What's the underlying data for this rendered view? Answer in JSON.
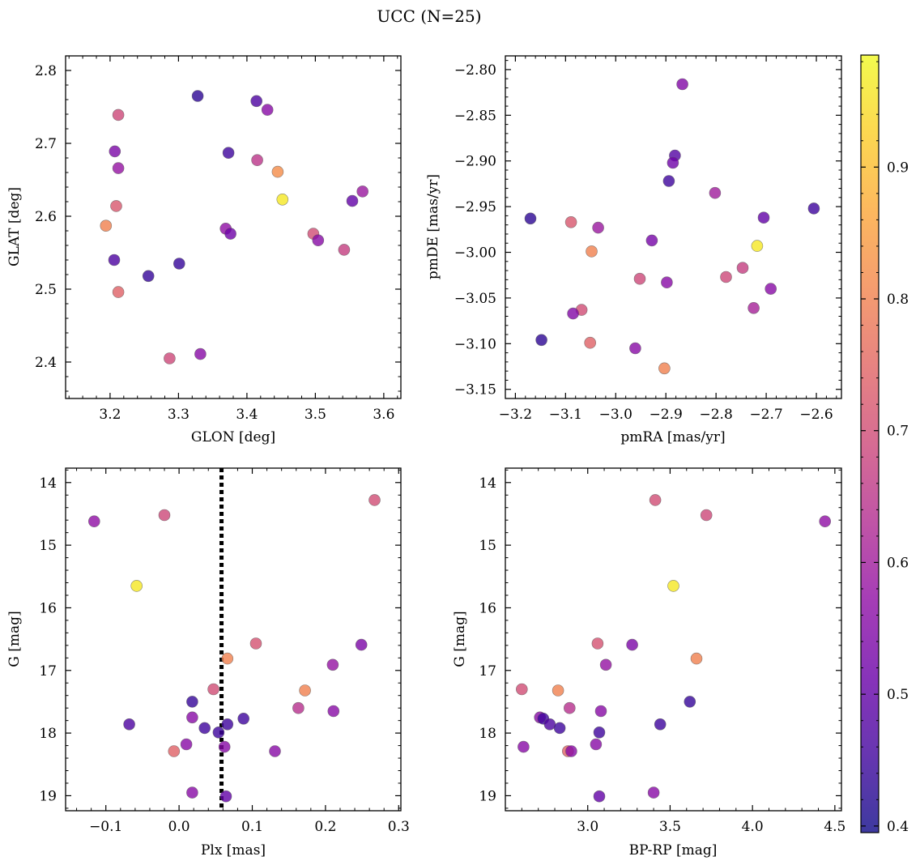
{
  "figure": {
    "title": "UCC (N=25)"
  },
  "colors": {
    "stops": [
      "#0d0887",
      "#41049d",
      "#6a00a8",
      "#8f0da4",
      "#b12a90",
      "#cc4778",
      "#e16462",
      "#f2844b",
      "#fca636",
      "#fcce25",
      "#f0f921"
    ],
    "point_edge": "#555555",
    "point_alpha": 0.8
  },
  "colorbar": {
    "vmin": 0.395,
    "vmax": 0.985,
    "ticks": [
      "0.4",
      "0.5",
      "0.6",
      "0.7",
      "0.8",
      "0.9"
    ]
  },
  "chart_data": [
    {
      "id": "glon-glat",
      "type": "scatter",
      "xlabel": "GLON [deg]",
      "ylabel": "GLAT [deg]",
      "xlim": [
        3.135,
        3.625
      ],
      "ylim": [
        2.35,
        2.82
      ],
      "xticks": [
        "3.2",
        "3.3",
        "3.4",
        "3.5",
        "3.6"
      ],
      "yticks": [
        "2.4",
        "2.5",
        "2.6",
        "2.7",
        "2.8"
      ],
      "x": [
        3.328,
        3.414,
        3.43,
        3.212,
        3.207,
        3.212,
        3.373,
        3.415,
        3.445,
        3.452,
        3.209,
        3.194,
        3.569,
        3.554,
        3.369,
        3.376,
        3.497,
        3.504,
        3.542,
        3.206,
        3.301,
        3.256,
        3.212,
        3.287,
        3.332
      ],
      "y": [
        2.765,
        2.758,
        2.746,
        2.739,
        2.689,
        2.666,
        2.687,
        2.677,
        2.661,
        2.623,
        2.614,
        2.587,
        2.634,
        2.621,
        2.583,
        2.576,
        2.576,
        2.567,
        2.554,
        2.54,
        2.535,
        2.518,
        2.496,
        2.405,
        2.411
      ],
      "c": [
        0.43,
        0.47,
        0.56,
        0.69,
        0.54,
        0.58,
        0.45,
        0.65,
        0.82,
        0.96,
        0.72,
        0.8,
        0.59,
        0.5,
        0.57,
        0.52,
        0.7,
        0.56,
        0.67,
        0.47,
        0.44,
        0.44,
        0.74,
        0.69,
        0.56
      ]
    },
    {
      "id": "pmra-pmde",
      "type": "scatter",
      "xlabel": "pmRA [mas/yr]",
      "ylabel": "pmDE [mas/yr]",
      "xlim": [
        -3.22,
        -2.55
      ],
      "ylim": [
        -3.16,
        -2.785
      ],
      "xticks": [
        "−3.2",
        "−3.1",
        "−3.0",
        "−2.9",
        "−2.8",
        "−2.7",
        "−2.6"
      ],
      "yticks": [
        "−2.80",
        "−2.85",
        "−2.90",
        "−2.95",
        "−3.00",
        "−3.05",
        "−3.10",
        "−3.15"
      ],
      "x": [
        -2.867,
        -2.882,
        -2.886,
        -2.894,
        -2.802,
        -3.17,
        -3.089,
        -2.705,
        -2.605,
        -3.035,
        -2.928,
        -2.718,
        -3.048,
        -2.747,
        -2.952,
        -2.78,
        -2.898,
        -2.691,
        -3.068,
        -3.085,
        -2.725,
        -3.148,
        -3.051,
        -2.961,
        -2.903
      ],
      "y": [
        -2.816,
        -2.894,
        -2.902,
        -2.922,
        -2.935,
        -2.963,
        -2.967,
        -2.962,
        -2.952,
        -2.973,
        -2.987,
        -2.993,
        -2.999,
        -3.017,
        -3.029,
        -3.027,
        -3.033,
        -3.04,
        -3.063,
        -3.067,
        -3.061,
        -3.096,
        -3.099,
        -3.105,
        -3.127
      ],
      "c": [
        0.55,
        0.48,
        0.52,
        0.45,
        0.6,
        0.43,
        0.72,
        0.5,
        0.45,
        0.59,
        0.53,
        0.96,
        0.8,
        0.67,
        0.69,
        0.69,
        0.56,
        0.56,
        0.7,
        0.55,
        0.61,
        0.43,
        0.74,
        0.56,
        0.8
      ]
    },
    {
      "id": "plx-g",
      "type": "scatter",
      "xlabel": "Plx [mas]",
      "ylabel": "G [mag]",
      "xlim": [
        -0.155,
        0.303
      ],
      "ylim": [
        19.24,
        13.77
      ],
      "ylim_note": "inverted axis",
      "xticks": [
        "−0.1",
        "0.0",
        "0.1",
        "0.2",
        "0.3"
      ],
      "yticks": [
        "14",
        "15",
        "16",
        "17",
        "18",
        "19"
      ],
      "vline": 0.058,
      "x": [
        0.267,
        -0.02,
        -0.116,
        -0.058,
        0.105,
        0.249,
        0.066,
        0.21,
        0.047,
        0.172,
        0.163,
        0.211,
        0.018,
        0.018,
        0.088,
        -0.068,
        0.066,
        0.035,
        0.054,
        0.01,
        0.062,
        -0.007,
        0.131,
        0.018,
        0.064
      ],
      "y": [
        14.28,
        14.52,
        14.62,
        15.65,
        16.57,
        16.59,
        16.81,
        16.91,
        17.3,
        17.32,
        17.6,
        17.65,
        17.5,
        17.75,
        17.77,
        17.86,
        17.86,
        17.92,
        17.99,
        18.18,
        18.22,
        18.29,
        18.29,
        18.95,
        19.01
      ],
      "c": [
        0.7,
        0.69,
        0.57,
        0.96,
        0.71,
        0.54,
        0.8,
        0.58,
        0.7,
        0.8,
        0.64,
        0.56,
        0.44,
        0.56,
        0.45,
        0.47,
        0.45,
        0.45,
        0.45,
        0.56,
        0.56,
        0.74,
        0.56,
        0.56,
        0.5
      ]
    },
    {
      "id": "bprp-g",
      "type": "scatter",
      "xlabel": "BP-RP [mag]",
      "ylabel": "G [mag]",
      "xlim": [
        2.5,
        4.54
      ],
      "ylim": [
        19.24,
        13.77
      ],
      "ylim_note": "inverted axis",
      "xticks": [
        "3.0",
        "3.5",
        "4.0",
        "4.5"
      ],
      "yticks": [
        "14",
        "15",
        "16",
        "17",
        "18",
        "19"
      ],
      "x": [
        3.41,
        3.72,
        4.44,
        3.52,
        3.06,
        3.27,
        3.66,
        3.11,
        2.6,
        2.82,
        2.89,
        3.08,
        3.62,
        2.71,
        2.73,
        2.77,
        3.44,
        2.83,
        3.07,
        3.05,
        2.61,
        2.88,
        2.9,
        3.4,
        3.07
      ],
      "y": [
        14.28,
        14.52,
        14.62,
        15.65,
        16.57,
        16.59,
        16.81,
        16.91,
        17.3,
        17.32,
        17.6,
        17.65,
        17.5,
        17.75,
        17.77,
        17.86,
        17.86,
        17.92,
        17.99,
        18.18,
        18.22,
        18.29,
        18.29,
        18.95,
        19.01
      ],
      "c": [
        0.7,
        0.69,
        0.57,
        0.96,
        0.71,
        0.54,
        0.8,
        0.58,
        0.7,
        0.8,
        0.64,
        0.56,
        0.44,
        0.56,
        0.45,
        0.47,
        0.45,
        0.45,
        0.45,
        0.56,
        0.56,
        0.74,
        0.56,
        0.56,
        0.5
      ]
    }
  ]
}
